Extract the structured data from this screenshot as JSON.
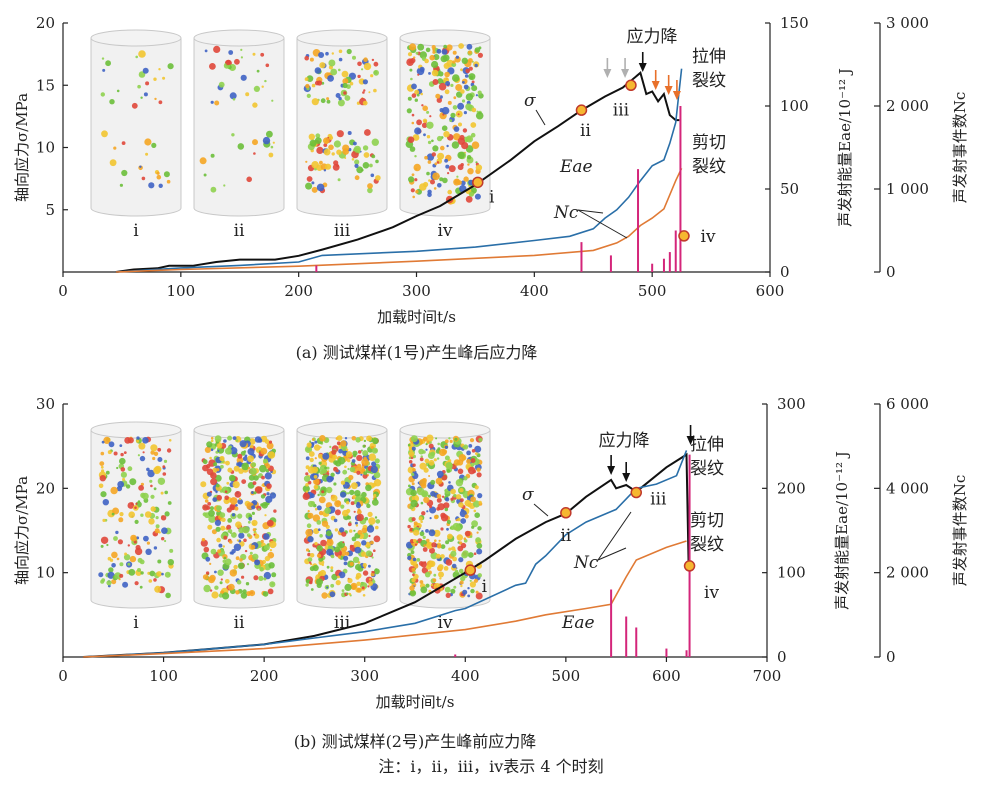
{
  "note": "注：ⅰ，ⅱ，ⅲ，ⅳ表示 4 个时刻",
  "colors": {
    "stress": "#111111",
    "nc": "#2a6fa8",
    "shear_line": "#e07a35",
    "eae": "#d4257a",
    "marker_fill": "#f6b730",
    "marker_stroke": "#c0392b",
    "arrow_gray": "#b0b0b0",
    "arrow_orange": "#e8702a",
    "arrow_black": "#111111"
  },
  "chart_data": [
    {
      "type": "line",
      "caption": "(a) 测试煤样(1号)产生峰后应力降",
      "xlabel": "加载时间t/s",
      "ylabel_left": "轴向应力σ/MPa",
      "ylabel_mid": "声发射能量Eae/10⁻¹² J",
      "ylabel_right": "声发射事件数Nc",
      "xlim": [
        0,
        600
      ],
      "x_ticks": [
        0,
        100,
        200,
        300,
        400,
        500,
        600
      ],
      "x_tick_labels": [
        "0",
        "100",
        "200",
        "300",
        "400",
        "500",
        "600"
      ],
      "ylim_left": [
        0,
        20
      ],
      "y_ticks_left": [
        5,
        10,
        15,
        20
      ],
      "y_tick_labels_left": [
        "5",
        "10",
        "15",
        "20"
      ],
      "ylim_mid": [
        0,
        150
      ],
      "y_ticks_mid": [
        0,
        50,
        100,
        150
      ],
      "y_tick_labels_mid": [
        "0",
        "50",
        "100",
        "150"
      ],
      "ylim_right": [
        0,
        3000
      ],
      "y_ticks_right": [
        0,
        1000,
        2000,
        3000
      ],
      "y_tick_labels_right": [
        "0",
        "1 000",
        "2 000",
        "3 000"
      ],
      "series": [
        {
          "name": "σ",
          "axis": "left",
          "x": [
            45,
            60,
            80,
            90,
            110,
            130,
            150,
            180,
            200,
            220,
            250,
            280,
            300,
            320,
            350,
            380,
            400,
            420,
            440,
            460,
            475,
            490,
            495,
            500,
            505,
            510,
            515,
            520,
            523
          ],
          "y": [
            0.0,
            0.2,
            0.3,
            0.5,
            0.5,
            0.8,
            1.0,
            1.0,
            1.3,
            1.8,
            2.6,
            3.6,
            4.5,
            5.3,
            7.0,
            9.0,
            10.5,
            11.7,
            13.0,
            14.1,
            14.8,
            16.0,
            14.3,
            14.5,
            13.7,
            14.3,
            12.6,
            12.2,
            12.2
          ]
        },
        {
          "name": "Nc",
          "axis": "right",
          "x": [
            45,
            100,
            150,
            200,
            220,
            300,
            350,
            400,
            430,
            450,
            460,
            470,
            480,
            490,
            500,
            510,
            515,
            520,
            525
          ],
          "y": [
            0,
            50,
            80,
            120,
            200,
            250,
            300,
            380,
            430,
            520,
            650,
            750,
            900,
            1100,
            1280,
            1350,
            1550,
            1800,
            2450
          ]
        },
        {
          "name": "剪切裂纹",
          "axis": "right",
          "x": [
            45,
            100,
            200,
            300,
            400,
            450,
            470,
            480,
            490,
            500,
            510,
            520,
            525
          ],
          "y": [
            0,
            30,
            70,
            130,
            200,
            260,
            350,
            430,
            560,
            650,
            760,
            1100,
            1250
          ]
        },
        {
          "name": "Eae",
          "axis": "mid",
          "type": "bar",
          "x": [
            215,
            440,
            465,
            488,
            500,
            510,
            515,
            520,
            524
          ],
          "y": [
            4,
            18,
            10,
            62,
            5,
            8,
            12,
            25,
            100
          ]
        }
      ],
      "annotations": {
        "sigma_label": "σ",
        "nc_label": "Nc",
        "eae_label": "Eae",
        "tension_label_1": "拉伸",
        "tension_label_2": "裂纹",
        "shear_label_1": "剪切",
        "shear_label_2": "裂纹",
        "stress_drop_label": "应力降",
        "points": [
          {
            "label": "ⅰ",
            "x": 352,
            "y": 7.2
          },
          {
            "label": "ⅱ",
            "x": 440,
            "y": 13.0
          },
          {
            "label": "ⅲ",
            "x": 482,
            "y": 15.0
          },
          {
            "label": "ⅳ",
            "x": 527,
            "y": 2.9
          }
        ],
        "arrows_gray_x": [
          462,
          477
        ],
        "arrows_black_x": [
          492
        ],
        "arrows_orange_x": [
          503,
          514,
          521
        ],
        "cylinder_labels": [
          "ⅰ",
          "ⅱ",
          "ⅲ",
          "ⅳ"
        ]
      }
    },
    {
      "type": "line",
      "caption": "(b) 测试煤样(2号)产生峰前应力降",
      "xlabel": "加载时间t/s",
      "ylabel_left": "轴向应力σ/MPa",
      "ylabel_mid": "声发射能量Eae/10⁻¹² J",
      "ylabel_right": "声发射事件数Nc",
      "xlim": [
        0,
        700
      ],
      "x_ticks": [
        0,
        100,
        200,
        300,
        400,
        500,
        600,
        700
      ],
      "x_tick_labels": [
        "0",
        "100",
        "200",
        "300",
        "400",
        "500",
        "600",
        "700"
      ],
      "ylim_left": [
        0,
        30
      ],
      "y_ticks_left": [
        10,
        20,
        30
      ],
      "y_tick_labels_left": [
        "10",
        "20",
        "30"
      ],
      "ylim_mid": [
        0,
        300
      ],
      "y_ticks_mid": [
        0,
        100,
        200,
        300
      ],
      "y_tick_labels_mid": [
        "0",
        "100",
        "200",
        "300"
      ],
      "ylim_right": [
        0,
        6000
      ],
      "y_ticks_right": [
        0,
        2000,
        4000,
        6000
      ],
      "y_tick_labels_right": [
        "0",
        "2 000",
        "4 000",
        "6 000"
      ],
      "series": [
        {
          "name": "σ",
          "axis": "left",
          "x": [
            20,
            100,
            150,
            200,
            250,
            300,
            350,
            400,
            420,
            450,
            480,
            500,
            520,
            545,
            550,
            560,
            570,
            600,
            620,
            622
          ],
          "y": [
            0.0,
            0.5,
            1.0,
            1.5,
            2.5,
            4.0,
            6.5,
            10.0,
            11.5,
            14.0,
            16.0,
            17.0,
            19.0,
            21.0,
            20.0,
            20.4,
            19.6,
            22.5,
            24.0,
            11.0
          ]
        },
        {
          "name": "Nc",
          "axis": "right",
          "x": [
            20,
            100,
            200,
            250,
            300,
            350,
            390,
            400,
            450,
            460,
            470,
            480,
            500,
            520,
            545,
            550,
            560,
            570,
            590,
            610,
            620
          ],
          "y": [
            0,
            100,
            300,
            450,
            600,
            800,
            1100,
            1150,
            1700,
            1750,
            2200,
            2400,
            2900,
            3200,
            3450,
            3500,
            3750,
            4000,
            4100,
            4300,
            4900
          ]
        },
        {
          "name": "剪切裂纹",
          "axis": "right",
          "x": [
            20,
            100,
            200,
            300,
            400,
            450,
            480,
            520,
            545,
            560,
            570,
            600,
            620
          ],
          "y": [
            0,
            80,
            200,
            400,
            650,
            850,
            1000,
            1150,
            1250,
            1900,
            2300,
            2600,
            2750
          ]
        },
        {
          "name": "Eae",
          "axis": "mid",
          "type": "bar",
          "x": [
            390,
            545,
            560,
            570,
            600,
            620,
            623
          ],
          "y": [
            3,
            80,
            48,
            35,
            10,
            8,
            240
          ]
        }
      ],
      "annotations": {
        "sigma_label": "σ",
        "nc_label": "Nc",
        "eae_label": "Eae",
        "tension_label_1": "拉伸",
        "tension_label_2": "裂纹",
        "shear_label_1": "剪切",
        "shear_label_2": "裂纹",
        "stress_drop_label": "应力降",
        "points": [
          {
            "label": "ⅰ",
            "x": 405,
            "y": 10.3
          },
          {
            "label": "ⅱ",
            "x": 500,
            "y": 17.1
          },
          {
            "label": "ⅲ",
            "x": 570,
            "y": 19.5
          },
          {
            "label": "ⅳ",
            "x": 623,
            "y": 10.8
          }
        ],
        "arrows_black_x": [
          545,
          560,
          624
        ],
        "cylinder_labels": [
          "ⅰ",
          "ⅱ",
          "ⅲ",
          "ⅳ"
        ]
      }
    }
  ]
}
